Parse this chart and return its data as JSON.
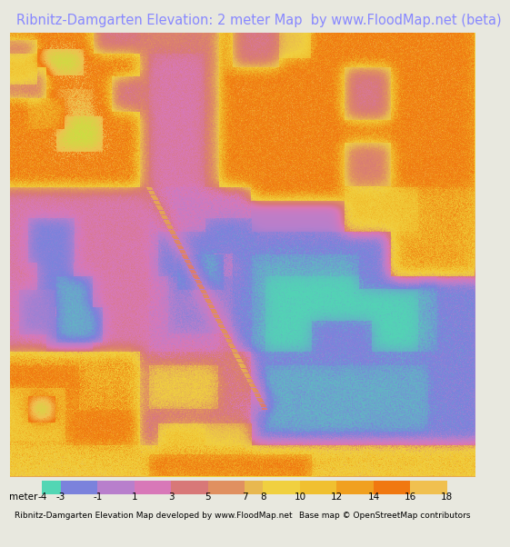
{
  "title": "Ribnitz-Damgarten Elevation: 2 meter Map  by www.FloodMap.net (beta)",
  "title_color": "#8888ff",
  "title_fontsize": 10.5,
  "bg_color": "#e8e8df",
  "colorbar_ticks": [
    -4,
    -3,
    -1,
    1,
    3,
    5,
    7,
    8,
    10,
    12,
    14,
    16,
    18
  ],
  "colorbar_colors": [
    "#52d6b4",
    "#7b82dc",
    "#b87fcc",
    "#d878b8",
    "#d87878",
    "#e09060",
    "#e8b850",
    "#f0d040",
    "#f0c030",
    "#f0a020",
    "#f07810",
    "#f0c050",
    "#c8e040"
  ],
  "footer_left": "Ribnitz-Damgarten Elevation Map developed by www.FloodMap.net",
  "footer_right": "Base map © OpenStreetMap contributors",
  "footer_fontsize": 6.5,
  "colorbar_label": "meter"
}
